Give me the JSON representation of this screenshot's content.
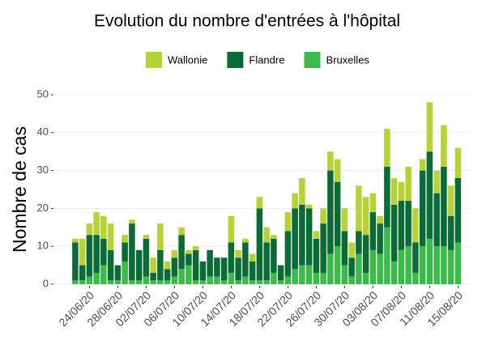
{
  "chart_data": {
    "type": "stacked_bar",
    "title": "Evolution du nombre d'entrées à l'hôpital",
    "y_label": "Nombre de cas",
    "categories": [
      null,
      null,
      "24/06/20",
      null,
      null,
      null,
      "28/06/20",
      null,
      null,
      null,
      "02/07/20",
      null,
      null,
      null,
      "06/07/20",
      null,
      null,
      null,
      "10/07/20",
      null,
      null,
      null,
      "14/07/20",
      null,
      null,
      null,
      "18/07/20",
      null,
      null,
      null,
      "22/07/20",
      null,
      null,
      null,
      "26/07/20",
      null,
      null,
      null,
      "30/07/20",
      null,
      null,
      null,
      "03/08/20",
      null,
      null,
      null,
      "07/08/20",
      null,
      null,
      null,
      "11/08/20",
      null,
      null,
      null,
      "15/08/20"
    ],
    "series": [
      {
        "name": "Wallonie",
        "color": "#b5d334",
        "values": [
          1,
          7,
          3,
          6,
          6,
          7,
          0,
          2,
          1,
          0,
          1,
          4,
          7,
          2,
          2,
          2,
          1,
          1,
          0,
          0,
          0,
          0,
          7,
          2,
          1,
          2,
          3,
          4,
          1,
          0,
          5,
          4,
          7,
          1,
          2,
          4,
          5,
          6,
          6,
          4,
          12,
          10,
          5,
          2,
          10,
          7,
          5,
          9,
          9,
          3,
          13,
          6,
          11,
          8,
          8
        ]
      },
      {
        "name": "Flandre",
        "color": "#0b6b36",
        "values": [
          10,
          4,
          11,
          10,
          7,
          8,
          4,
          5,
          15,
          8,
          10,
          2,
          8,
          3,
          5,
          9,
          3,
          8,
          5,
          7,
          5,
          6,
          8,
          6,
          9,
          5,
          19,
          10,
          9,
          4,
          12,
          16,
          16,
          15,
          9,
          13,
          22,
          17,
          9,
          5,
          6,
          10,
          10,
          8,
          16,
          15,
          13,
          12,
          8,
          20,
          23,
          14,
          21,
          9,
          17
        ]
      },
      {
        "name": "Bruxelles",
        "color": "#3dbb4a",
        "values": [
          1,
          1,
          2,
          3,
          5,
          1,
          1,
          6,
          1,
          1,
          2,
          1,
          1,
          1,
          2,
          4,
          5,
          1,
          1,
          2,
          2,
          1,
          3,
          1,
          2,
          1,
          1,
          1,
          3,
          1,
          2,
          4,
          5,
          5,
          3,
          3,
          8,
          10,
          5,
          2,
          8,
          3,
          9,
          8,
          15,
          6,
          9,
          10,
          3,
          10,
          12,
          10,
          10,
          9,
          11
        ]
      }
    ],
    "ylim": [
      0,
      50
    ],
    "yticks": [
      0,
      10,
      20,
      30,
      40,
      50
    ],
    "grid": true
  }
}
